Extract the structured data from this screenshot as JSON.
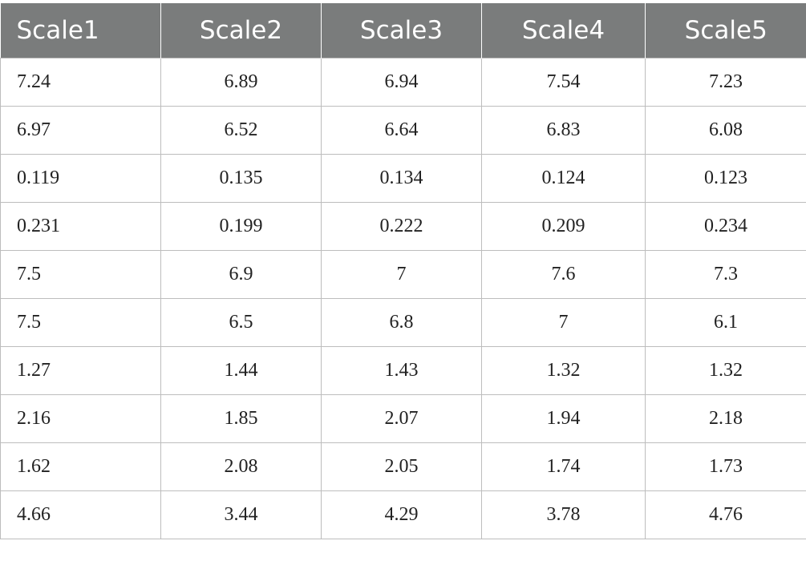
{
  "table": {
    "headers": [
      "Scale1",
      "Scale2",
      "Scale3",
      "Scale4",
      "Scale5"
    ],
    "rows": [
      [
        "7.24",
        "6.89",
        "6.94",
        "7.54",
        "7.23"
      ],
      [
        "6.97",
        "6.52",
        "6.64",
        "6.83",
        "6.08"
      ],
      [
        "0.119",
        "0.135",
        "0.134",
        "0.124",
        "0.123"
      ],
      [
        "0.231",
        "0.199",
        "0.222",
        "0.209",
        "0.234"
      ],
      [
        "7.5",
        "6.9",
        "7",
        "7.6",
        "7.3"
      ],
      [
        "7.5",
        "6.5",
        "6.8",
        "7",
        "6.1"
      ],
      [
        "1.27",
        "1.44",
        "1.43",
        "1.32",
        "1.32"
      ],
      [
        "2.16",
        "1.85",
        "2.07",
        "1.94",
        "2.18"
      ],
      [
        "1.62",
        "2.08",
        "2.05",
        "1.74",
        "1.73"
      ],
      [
        "4.66",
        "3.44",
        "4.29",
        "3.78",
        "4.76"
      ]
    ]
  },
  "colors": {
    "header_bg": "#7a7c7c",
    "header_text": "#ffffff",
    "grid_line": "#bdbdbd"
  }
}
